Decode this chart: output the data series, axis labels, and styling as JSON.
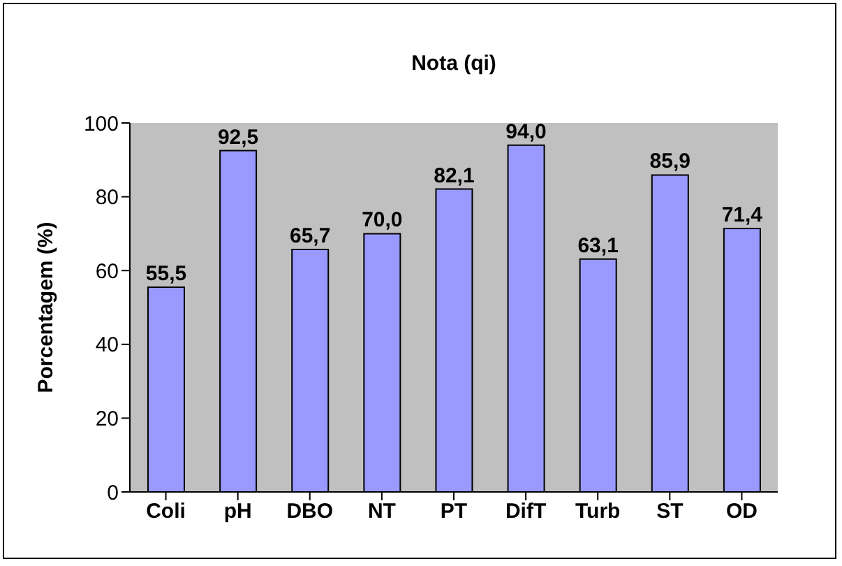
{
  "chart_data": {
    "type": "bar",
    "title": "Nota (qi)",
    "ylabel": "Porcentagem (%)",
    "categories": [
      "Coli",
      "pH",
      "DBO",
      "NT",
      "PT",
      "DifT",
      "Turb",
      "ST",
      "OD"
    ],
    "values": [
      55.5,
      92.5,
      65.7,
      70.0,
      82.1,
      94.0,
      63.1,
      85.9,
      71.4
    ],
    "value_labels": [
      "55,5",
      "92,5",
      "65,7",
      "70,0",
      "82,1",
      "94,0",
      "63,1",
      "85,9",
      "71,4"
    ],
    "color": "#9999ff",
    "ylim": [
      0,
      100
    ],
    "yticks": [
      0,
      20,
      40,
      60,
      80,
      100
    ],
    "grid": false,
    "legend": false
  }
}
